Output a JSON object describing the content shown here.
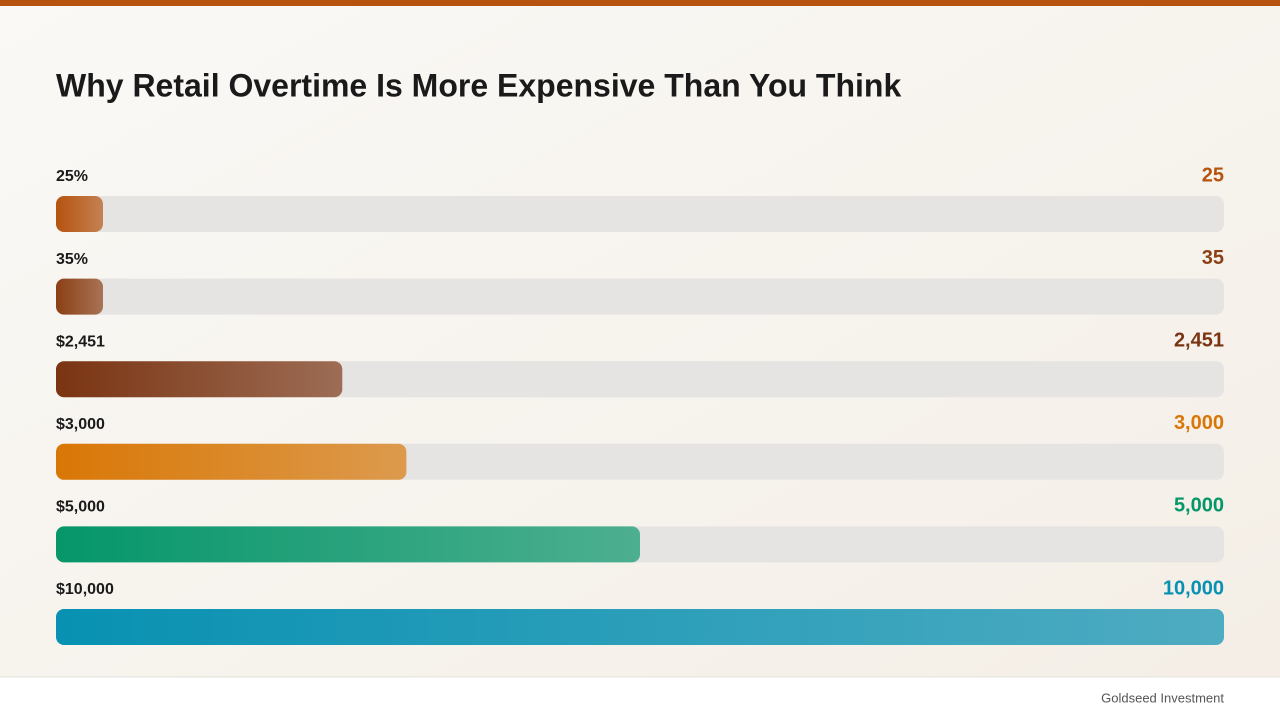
{
  "chart_data": {
    "type": "bar",
    "orientation": "horizontal",
    "title": "Why Retail Overtime Is More Expensive Than You Think",
    "categories": [
      "25%",
      "35%",
      "$2,451",
      "$3,000",
      "$5,000",
      "$10,000"
    ],
    "values": [
      25,
      35,
      2451,
      3000,
      5000,
      10000
    ],
    "value_labels": [
      "25",
      "35",
      "2,451",
      "3,000",
      "5,000",
      "10,000"
    ],
    "colors": [
      "#b5530f",
      "#8b3f14",
      "#7a3412",
      "#d97706",
      "#059669",
      "#0891b2"
    ],
    "xlim": [
      0,
      10000
    ]
  },
  "footer": {
    "brand": "Goldseed Investment"
  }
}
